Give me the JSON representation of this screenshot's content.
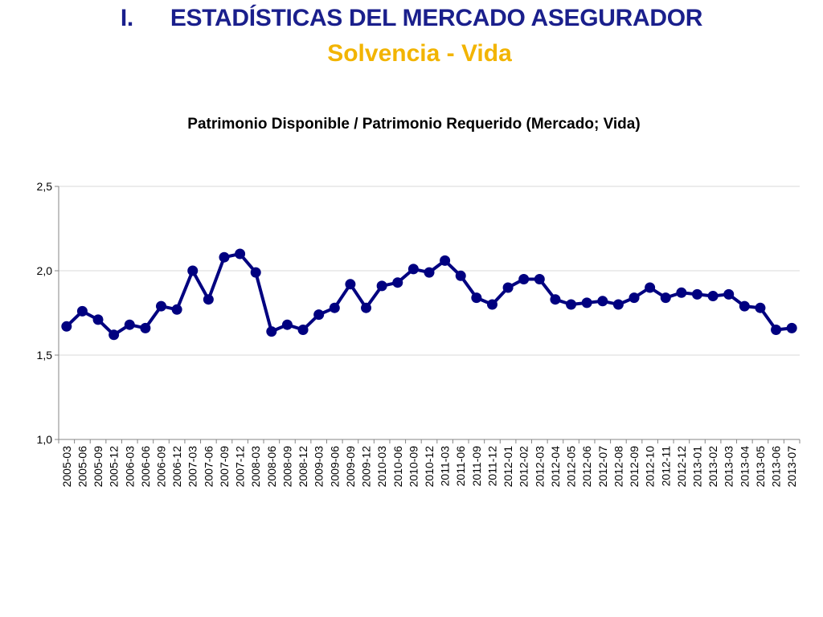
{
  "slide": {
    "section_number": "I.",
    "title": "ESTADÍSTICAS DEL MERCADO ASEGURADOR",
    "subtitle": "Solvencia - Vida",
    "title_color": "#1a1f8c",
    "subtitle_color": "#f2b400"
  },
  "chart_data": {
    "type": "line",
    "title": "Patrimonio Disponible / Patrimonio Requerido (Mercado; Vida)",
    "xlabel": "",
    "ylabel": "",
    "ylim": [
      1.0,
      2.5
    ],
    "y_ticks": [
      "1,0",
      "1,5",
      "2,0",
      "2,5"
    ],
    "y_tick_values": [
      1.0,
      1.5,
      2.0,
      2.5
    ],
    "grid": true,
    "legend": "none",
    "series_color": "#000080",
    "categories": [
      "2005-03",
      "2005-06",
      "2005-09",
      "2005-12",
      "2006-03",
      "2006-06",
      "2006-09",
      "2006-12",
      "2007-03",
      "2007-06",
      "2007-09",
      "2007-12",
      "2008-03",
      "2008-06",
      "2008-09",
      "2008-12",
      "2009-03",
      "2009-06",
      "2009-09",
      "2009-12",
      "2010-03",
      "2010-06",
      "2010-09",
      "2010-12",
      "2011-03",
      "2011-06",
      "2011-09",
      "2011-12",
      "2012-01",
      "2012-02",
      "2012-03",
      "2012-04",
      "2012-05",
      "2012-06",
      "2012-07",
      "2012-08",
      "2012-09",
      "2012-10",
      "2012-11",
      "2012-12",
      "2013-01",
      "2013-02",
      "2013-03",
      "2013-04",
      "2013-05",
      "2013-06",
      "2013-07"
    ],
    "series": [
      {
        "values": [
          1.67,
          1.76,
          1.71,
          1.62,
          1.68,
          1.66,
          1.79,
          1.77,
          2.0,
          1.83,
          2.08,
          2.1,
          1.99,
          1.64,
          1.68,
          1.65,
          1.74,
          1.78,
          1.92,
          1.78,
          1.91,
          1.93,
          2.01,
          1.99,
          2.06,
          1.97,
          1.84,
          1.8,
          1.9,
          1.95,
          1.95,
          1.83,
          1.8,
          1.81,
          1.82,
          1.8,
          1.84,
          1.9,
          1.84,
          1.87,
          1.86,
          1.85,
          1.86,
          1.79,
          1.78,
          1.65,
          1.66
        ]
      }
    ]
  }
}
